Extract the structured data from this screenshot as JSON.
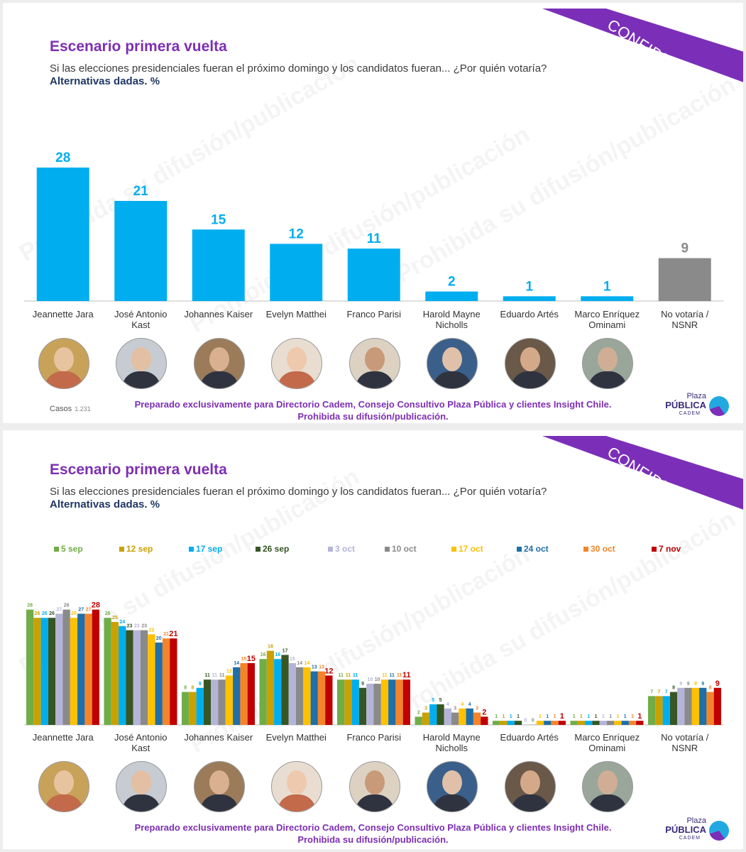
{
  "slide1": {
    "title": "Escenario primera vuelta",
    "question": "Si las elecciones presidenciales fueran el próximo domingo y los candidatos fueran... ¿Por quién votaría?",
    "subtitle": "Alternativas dadas. %",
    "ribbon": "CONFIDENCIAL",
    "watermark": "Prohibida su difusión/publicación",
    "casos_label": "Casos",
    "casos_value": "1.231",
    "footer_line1": "Preparado exclusivamente para Directorio Cadem, Consejo Consultivo Plaza Pública y clientes Insight Chile.",
    "footer_line2": "Prohibida su difusión/publicación.",
    "logo": {
      "top": "Plaza",
      "main": "PÚBLICA",
      "bottom": "CADEM"
    }
  },
  "slide2": {
    "title": "Escenario primera vuelta",
    "question": "Si las elecciones presidenciales fueran el próximo domingo y los candidatos fueran... ¿Por quién votaría?",
    "subtitle": "Alternativas dadas. %",
    "ribbon": "CONFIDENCIAL",
    "watermark": "Prohibida su difusión/publicación",
    "footer_line1": "Preparado exclusivamente para Directorio Cadem, Consejo Consultivo Plaza Pública y clientes Insight Chile.",
    "footer_line2": "Prohibida su difusión/publicación.",
    "logo": {
      "top": "Plaza",
      "main": "PÚBLICA",
      "bottom": "CADEM"
    }
  },
  "colors": {
    "primary_bar": "#00aeef",
    "nsnr_bar": "#8a8a8a",
    "title": "#7d2fb2"
  },
  "chart_data": [
    {
      "type": "bar",
      "title": "Escenario primera vuelta",
      "categories": [
        [
          "Jeannette Jara"
        ],
        [
          "José Antonio",
          "Kast"
        ],
        [
          "Johannes Kaiser"
        ],
        [
          "Evelyn Matthei"
        ],
        [
          "Franco Parisi"
        ],
        [
          "Harold Mayne",
          "Nicholls"
        ],
        [
          "Eduardo Artés"
        ],
        [
          "Marco Enríquez",
          "Ominami"
        ],
        [
          "No votaría /",
          "NSNR"
        ]
      ],
      "values": [
        28,
        21,
        15,
        12,
        11,
        2,
        1,
        1,
        9
      ],
      "ylim": [
        0,
        30
      ]
    },
    {
      "type": "bar",
      "title": "Escenario primera vuelta",
      "categories": [
        [
          "Jeannette Jara"
        ],
        [
          "José Antonio",
          "Kast"
        ],
        [
          "Johannes Kaiser"
        ],
        [
          "Evelyn Matthei"
        ],
        [
          "Franco Parisi"
        ],
        [
          "Harold Mayne",
          "Nicholls"
        ],
        [
          "Eduardo Artés"
        ],
        [
          "Marco Enríquez",
          "Ominami"
        ],
        [
          "No votaría /",
          "NSNR"
        ]
      ],
      "ylim": [
        0,
        30
      ],
      "series": [
        {
          "name": "5 sep",
          "color": "#70ad47",
          "values": [
            28,
            26,
            8,
            16,
            11,
            2,
            1,
            1,
            7
          ]
        },
        {
          "name": "12 sep",
          "color": "#c9a100",
          "values": [
            26,
            25,
            8,
            18,
            11,
            3,
            1,
            1,
            7
          ]
        },
        {
          "name": "17 sep",
          "color": "#00aeef",
          "values": [
            26,
            24,
            9,
            16,
            11,
            5,
            1,
            1,
            7
          ]
        },
        {
          "name": "26 sep",
          "color": "#375623",
          "values": [
            26,
            23,
            11,
            17,
            9,
            5,
            1,
            1,
            8
          ]
        },
        {
          "name": "3 oct",
          "color": "#b4b4d8",
          "values": [
            27,
            23,
            11,
            15,
            10,
            4,
            0,
            1,
            9
          ]
        },
        {
          "name": "10 oct",
          "color": "#8a8a8a",
          "values": [
            28,
            23,
            11,
            14,
            10,
            3,
            0,
            1,
            9
          ]
        },
        {
          "name": "17 oct",
          "color": "#ffc000",
          "values": [
            26,
            22,
            12,
            14,
            11,
            4,
            1,
            1,
            9
          ]
        },
        {
          "name": "24 oct",
          "color": "#1f6fa8",
          "values": [
            27,
            20,
            14,
            13,
            11,
            4,
            1,
            1,
            9
          ]
        },
        {
          "name": "30 oct",
          "color": "#f4842a",
          "values": [
            27,
            21,
            15,
            13,
            11,
            3,
            1,
            1,
            8
          ]
        },
        {
          "name": "7 nov",
          "color": "#c00000",
          "values": [
            28,
            21,
            15,
            12,
            11,
            2,
            1,
            1,
            9
          ]
        }
      ]
    }
  ]
}
